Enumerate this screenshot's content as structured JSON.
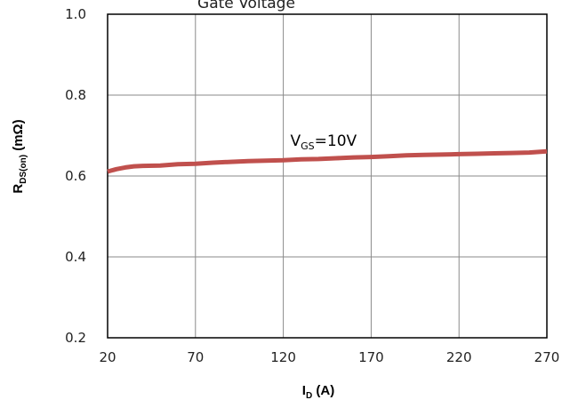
{
  "chart_data": {
    "type": "line",
    "title": "Gate Voltage",
    "xlabel": {
      "main": "I",
      "sub": "D",
      "rest": " (A)"
    },
    "ylabel": {
      "main": "R",
      "sub": "DS(on)",
      "rest": " (mΩ)"
    },
    "xlim": [
      20,
      270
    ],
    "ylim": [
      0.2,
      1.0
    ],
    "x_ticks": [
      20,
      70,
      120,
      170,
      220,
      270
    ],
    "y_ticks": [
      0.2,
      0.4,
      0.6,
      0.8,
      1.0
    ],
    "x_tick_labels": [
      "20",
      "70",
      "120",
      "170",
      "220",
      "270"
    ],
    "y_tick_labels": [
      "0.2",
      "0.4",
      "0.6",
      "0.8",
      "1.0"
    ],
    "grid": true,
    "series": [
      {
        "color": "#c0504d",
        "x": [
          20,
          25,
          30,
          35,
          40,
          50,
          60,
          70,
          80,
          90,
          100,
          110,
          120,
          130,
          140,
          150,
          160,
          170,
          180,
          190,
          200,
          210,
          220,
          230,
          240,
          250,
          260,
          270
        ],
        "y": [
          0.611,
          0.617,
          0.621,
          0.624,
          0.625,
          0.626,
          0.629,
          0.63,
          0.633,
          0.635,
          0.637,
          0.638,
          0.639,
          0.641,
          0.642,
          0.644,
          0.646,
          0.647,
          0.649,
          0.651,
          0.652,
          0.653,
          0.654,
          0.655,
          0.656,
          0.657,
          0.658,
          0.661
        ]
      }
    ],
    "annotation": {
      "main": "V",
      "sub": "GS",
      "rest": "=10V",
      "x": 124,
      "y": 0.675
    }
  }
}
